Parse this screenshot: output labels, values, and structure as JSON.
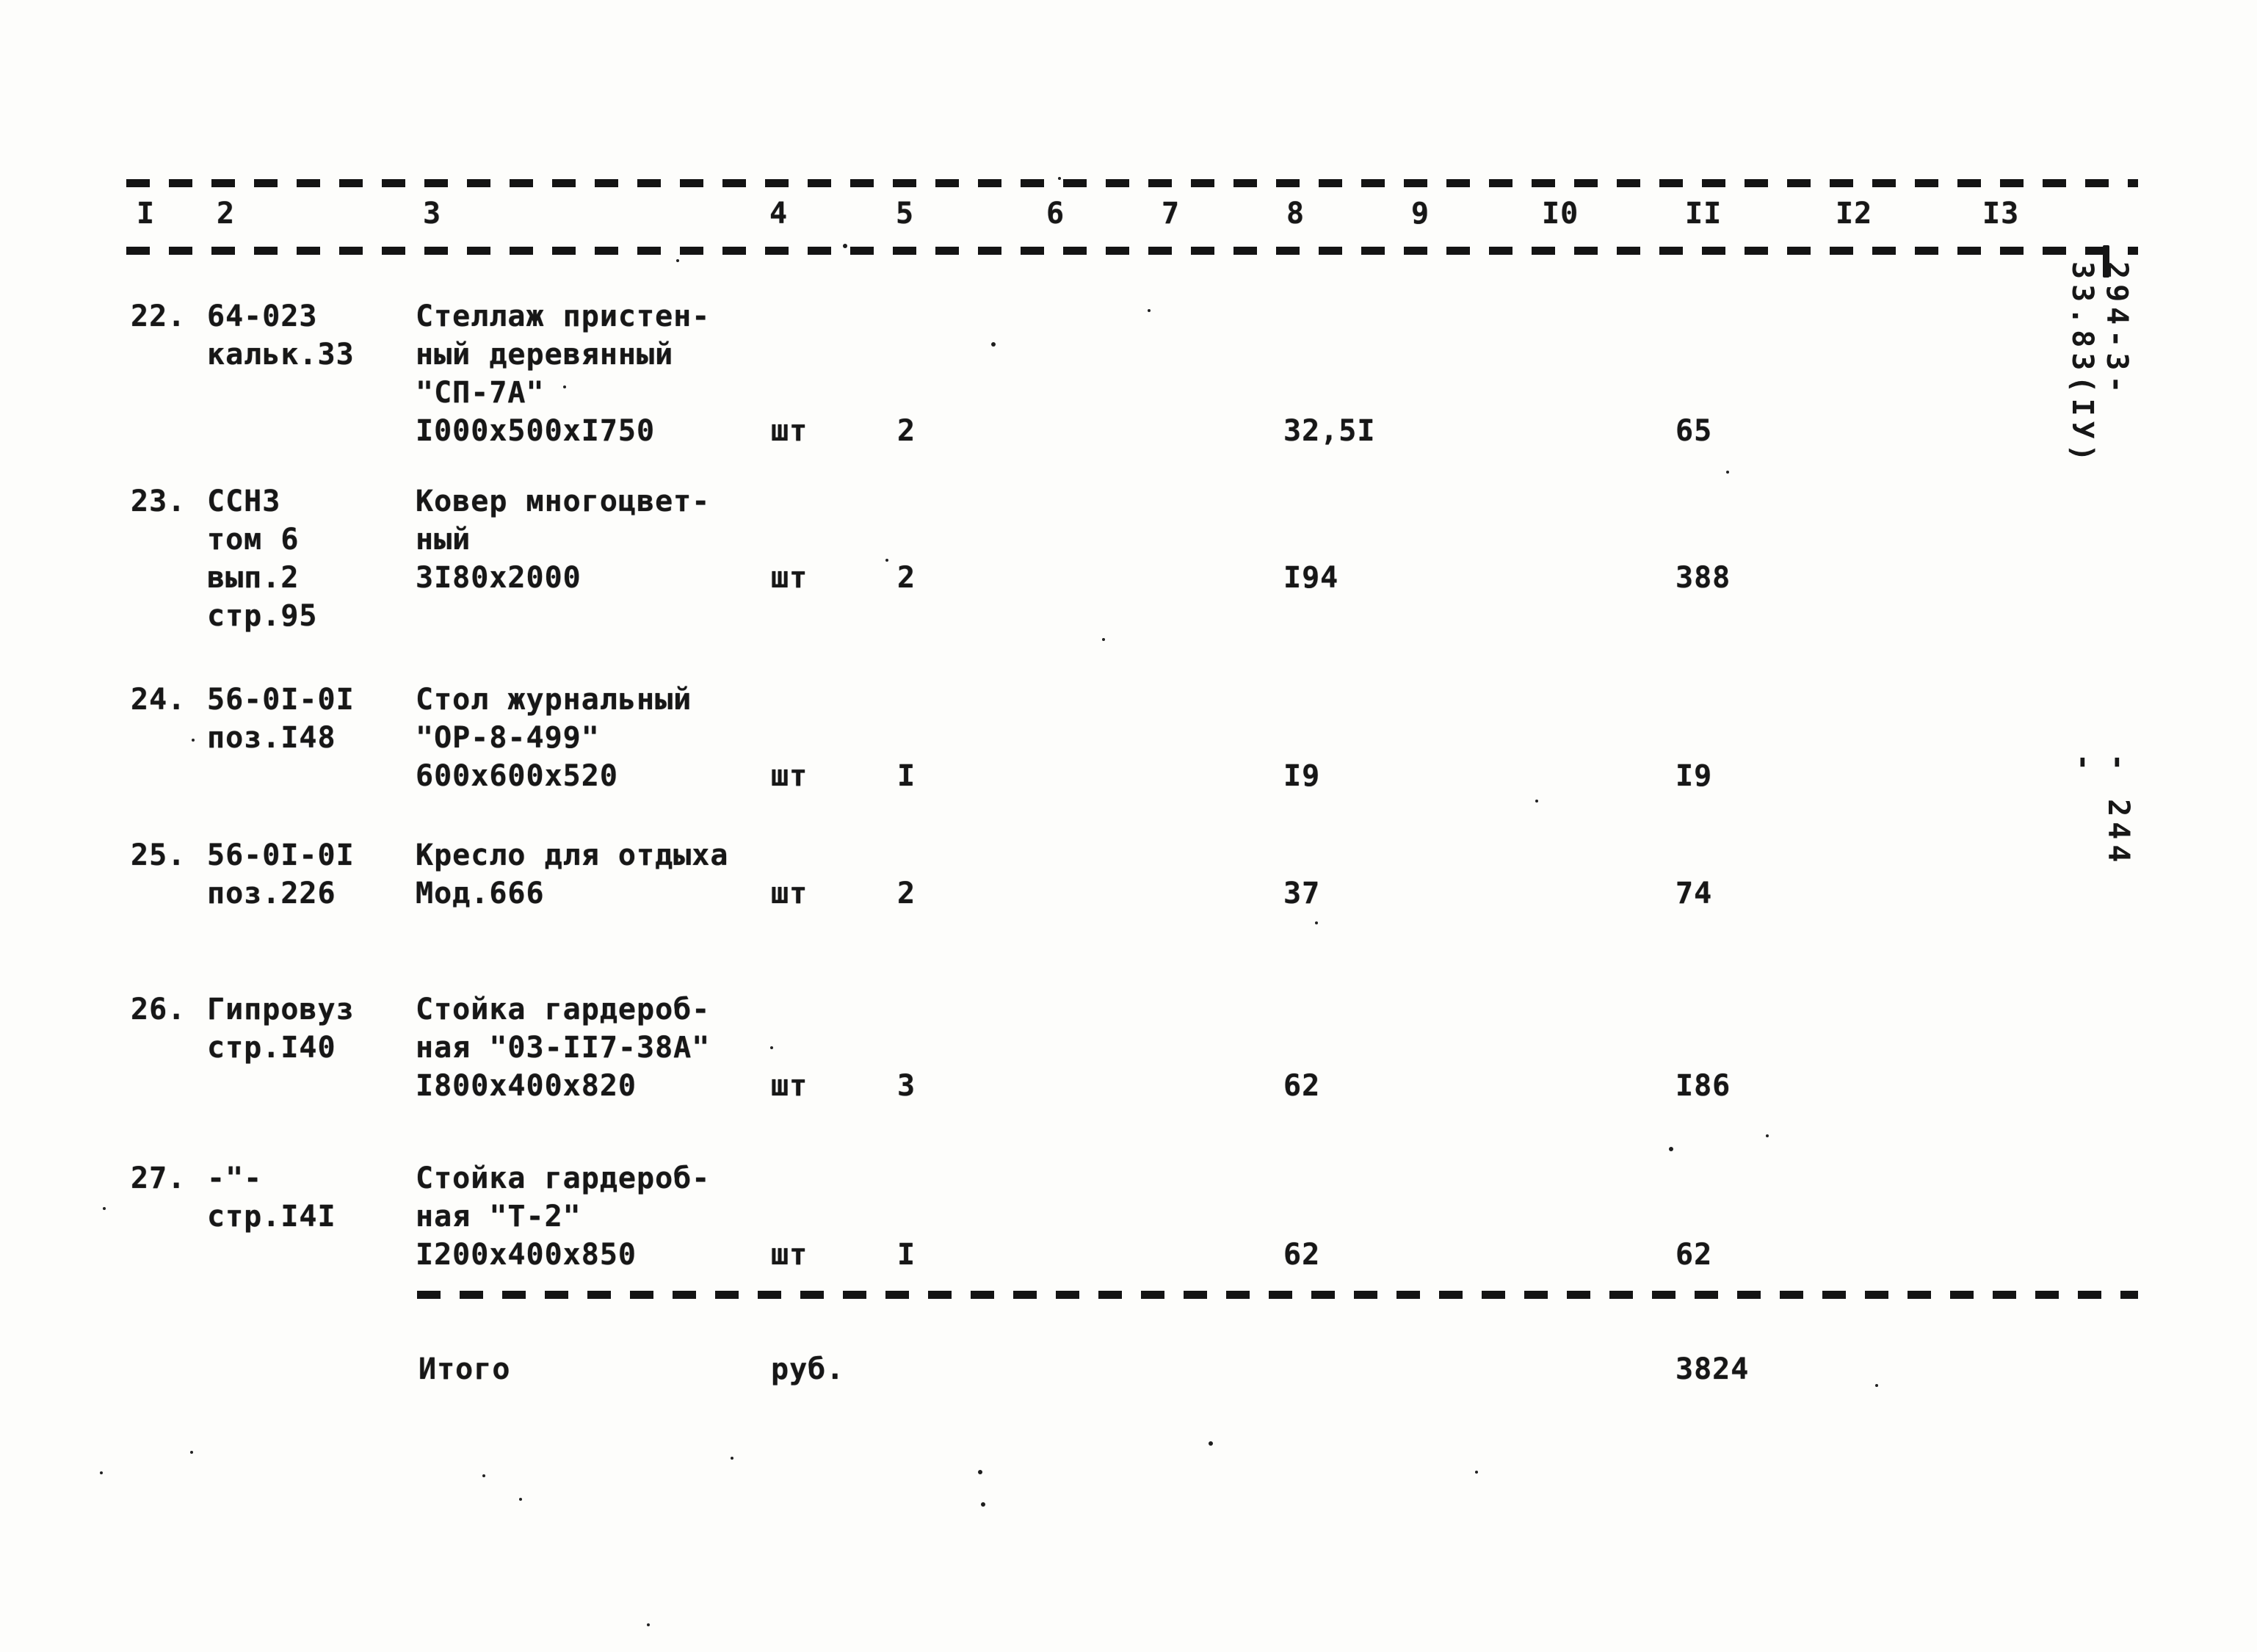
{
  "document": {
    "code": "294-3-33.83(IУ)",
    "page_number": "- 244 -"
  },
  "table": {
    "column_headers": [
      "I",
      "2",
      "3",
      "4",
      "5",
      "6",
      "7",
      "8",
      "9",
      "I0",
      "II",
      "I2",
      "I3"
    ],
    "rows": [
      {
        "num": "22.",
        "source": [
          "64-023",
          "кальк.33"
        ],
        "name": [
          "Стеллаж пристен-",
          "ный деревянный",
          "\"СП-7А\"",
          "I000х500хI750"
        ],
        "unit": "шт",
        "qty": "2",
        "unit_price": "32,5I",
        "total": "65"
      },
      {
        "num": "23.",
        "source": [
          "ССНЗ",
          "том 6",
          "вып.2",
          "стр.95"
        ],
        "name": [
          "Ковер многоцвет-",
          "ный",
          "3I80х2000"
        ],
        "unit": "шт",
        "qty": "2",
        "unit_price": "I94",
        "total": "388"
      },
      {
        "num": "24.",
        "source": [
          "56-0I-0I",
          "поз.I48"
        ],
        "name": [
          "Стол журнальный",
          "\"ОР-8-499\"",
          "600х600х520"
        ],
        "unit": "шт",
        "qty": "I",
        "unit_price": "I9",
        "total": "I9"
      },
      {
        "num": "25.",
        "source": [
          "56-0I-0I",
          "поз.226"
        ],
        "name": [
          "Кресло для отдыха",
          "Мод.666"
        ],
        "unit": "шт",
        "qty": "2",
        "unit_price": "37",
        "total": "74"
      },
      {
        "num": "26.",
        "source": [
          "Гипровуз",
          "стр.I40"
        ],
        "name": [
          "Стойка гардероб-",
          "ная \"03-II7-38А\"",
          "I800х400х820"
        ],
        "unit": "шт",
        "qty": "3",
        "unit_price": "62",
        "total": "I86"
      },
      {
        "num": "27.",
        "source": [
          "-\"-",
          "стр.I4I"
        ],
        "name": [
          "Стойка гардероб-",
          "ная \"Т-2\"",
          "I200х400х850"
        ],
        "unit": "шт",
        "qty": "I",
        "unit_price": "62",
        "total": "62"
      }
    ],
    "totals": {
      "label": "Итого",
      "unit": "руб.",
      "value": "3824"
    }
  }
}
